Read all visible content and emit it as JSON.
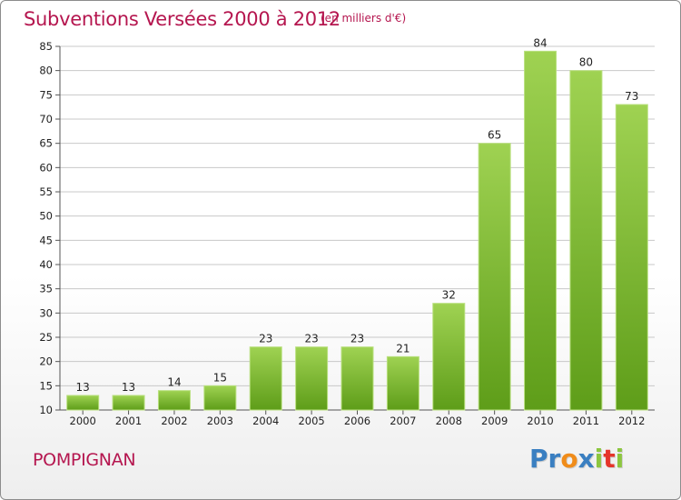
{
  "header": {
    "title": "Subventions Versées 2000 à 2012",
    "unit": "(en milliers d'€)"
  },
  "footer": {
    "commune": "POMPIGNAN",
    "logo_text": "Proxiti",
    "logo_letters": [
      {
        "ch": "P",
        "color": "#3a7fc1"
      },
      {
        "ch": "r",
        "color": "#3a7fc1"
      },
      {
        "ch": "o",
        "color": "#f08c1a"
      },
      {
        "ch": "x",
        "color": "#3a7fc1"
      },
      {
        "ch": "i",
        "color": "#8cc63f"
      },
      {
        "ch": "t",
        "color": "#e5352b"
      },
      {
        "ch": "i",
        "color": "#8cc63f"
      }
    ]
  },
  "colors": {
    "title": "#b5164f",
    "bar_top": "#9fd252",
    "bar_bottom": "#5e9d19",
    "grid": "#c8c8c8"
  },
  "chart_data": {
    "type": "bar",
    "title": "Subventions Versées 2000 à 2012",
    "subtitle": "(en milliers d'€)",
    "categories": [
      "2000",
      "2001",
      "2002",
      "2003",
      "2004",
      "2005",
      "2006",
      "2007",
      "2008",
      "2009",
      "2010",
      "2011",
      "2012"
    ],
    "values": [
      13,
      13,
      14,
      15,
      23,
      23,
      23,
      21,
      32,
      65,
      84,
      80,
      73
    ],
    "ylim": [
      10,
      85
    ],
    "yticks": [
      10,
      15,
      20,
      25,
      30,
      35,
      40,
      45,
      50,
      55,
      60,
      65,
      70,
      75,
      80,
      85
    ],
    "grid": true,
    "xlabel": "",
    "ylabel": ""
  }
}
